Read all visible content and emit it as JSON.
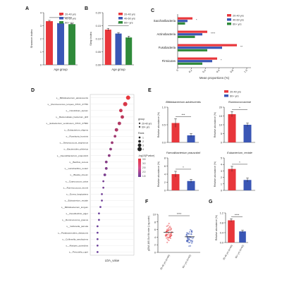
{
  "colors": {
    "red": "#e8363b",
    "blue": "#3a56b5",
    "green": "#2f8a3a",
    "axis": "#333333",
    "pink": "#d94f8d",
    "purple": "#6a3d9a"
  },
  "chart_data": [
    {
      "id": "A",
      "panel_label": "A",
      "type": "bar",
      "categories": [
        "20-40 yrs",
        "40-60 yrs",
        "60+ yrs"
      ],
      "values": [
        3.35,
        3.2,
        3.12
      ],
      "errors": [
        0.06,
        0.05,
        0.05
      ],
      "ylabel": "Shannon index",
      "xlabel": "Age group",
      "ylim": [
        0,
        4
      ],
      "yticks": [
        "0",
        "1",
        "2",
        "3",
        "4"
      ],
      "sig": "**",
      "legend": [
        "20-40 yrs",
        "40-60 yrs",
        "60+ yrs"
      ],
      "legend_position": "top-right"
    },
    {
      "id": "B",
      "panel_label": "B",
      "type": "bar",
      "categories": [
        "20-40 yrs",
        "40-60 yrs",
        "60+ yrs"
      ],
      "values": [
        0.135,
        0.12,
        0.105
      ],
      "errors": [
        0.005,
        0.004,
        0.005
      ],
      "ylabel": "Simp index",
      "xlabel": "Age group",
      "ylim": [
        0,
        0.2
      ],
      "yticks": [
        "0.00",
        "0.05",
        "0.10",
        "0.15",
        "0.20"
      ],
      "sig": "*",
      "legend": [
        "20-40 yrs",
        "40-60 yrs",
        "60+ yrs"
      ],
      "legend_position": "top-right"
    },
    {
      "id": "C",
      "panel_label": "C",
      "type": "bar",
      "orientation": "horizontal",
      "categories": [
        "Saccharibacteria",
        "Actinobacteria",
        "Fusobacteria",
        "Firmicutes"
      ],
      "series": [
        {
          "name": "20-40 yrs",
          "values": [
            0.3,
            0.6,
            1.2,
            0.8
          ]
        },
        {
          "name": "40-60 yrs",
          "values": [
            0.2,
            0.5,
            0.9,
            0.7
          ]
        },
        {
          "name": "60+ yrs",
          "values": [
            0.15,
            0.35,
            0.6,
            0.5
          ]
        }
      ],
      "sig": [
        "*",
        "****",
        "**",
        "*"
      ],
      "xlabel": "Mean proportions (%)",
      "xticks": [
        "0",
        "0.2",
        "0.4",
        "0.6",
        "0.8",
        "1.0"
      ],
      "legend": [
        "20-40 yrs",
        "40-60 yrs",
        "60+ yrs"
      ],
      "legend_position": "top-right"
    },
    {
      "id": "D",
      "panel_label": "D",
      "type": "scatter",
      "categories": [
        "s__Bifidobacterium_adolescentis",
        "s__Ruminococcus_torques_ATCC_27756",
        "s__Clostridium_leptum",
        "s__Bacteroidales_bacterium_ph8",
        "s__Eubacterium_ventriosum_ATCC_27560",
        "s__Eubacterium_eligens",
        "s__Roseburia_hominis",
        "s__Streptococcus_anginosus",
        "s__Bacteroides_plebeius",
        "s__Faecalibacterium_prausnitzii",
        "s__Bacillus_cereus",
        "s__Lactobacillus_reuteri",
        "s__Blautia_obeum",
        "s__Coprococcus_catus",
        "s__Ruminococcus_bromii",
        "s__Dorea_longicatena",
        "s__Eubacterium_rectale",
        "s__Bifidobacterium_longum",
        "s__Desulfovibrio_piger",
        "s__Ruminococcus_gnavus",
        "s__Veillonella_parvula",
        "s__Parabacteroides_distasonis",
        "s__Collinsella_aerofaciens",
        "s__Alistipes_putredinis",
        "s__Prevotella_copri"
      ],
      "x": [
        4.1,
        3.9,
        3.6,
        3.7,
        3.5,
        3.3,
        3.2,
        3.0,
        2.9,
        2.8,
        2.6,
        2.6,
        2.5,
        2.4,
        2.4,
        2.3,
        2.3,
        2.2,
        2.1,
        2.1,
        2.0,
        2.0,
        2.0,
        2.0,
        2.0
      ],
      "log10p": [
        3.6,
        3.3,
        3.0,
        2.8,
        2.6,
        2.5,
        2.3,
        2.2,
        2.0,
        1.9,
        1.8,
        1.7,
        1.6,
        1.5,
        1.5,
        1.4,
        1.4,
        1.3,
        1.3,
        1.3,
        1.3,
        1.3,
        1.3,
        1.3,
        1.3
      ],
      "size": [
        4,
        4,
        3,
        3,
        3,
        3,
        2,
        2,
        2,
        2,
        2,
        2,
        2,
        1,
        1,
        1,
        1,
        1,
        1,
        1,
        1,
        1,
        1,
        1,
        1
      ],
      "xlabel": "LDA_value",
      "legend_title_group": "group",
      "legend_group": [
        "20-40 yrs",
        "60+ yrs"
      ],
      "legend_title_size": "Rank",
      "legend_size": [
        "1",
        "2",
        "3",
        "4"
      ],
      "legend_title_color": "-log10(Pvalue)",
      "legend_color": [
        "3.5",
        "3.0",
        "2.5",
        "2.0",
        "1.5"
      ]
    },
    {
      "id": "E",
      "panel_label": "E",
      "type": "bar",
      "legend": [
        "20-40 yrs",
        "60+ yrs"
      ],
      "ylabel": "Relative abundance (%)",
      "subplots": [
        {
          "title": "Bifidobacterium adolescentis",
          "values": [
            0.55,
            0.2
          ],
          "errors": [
            0.12,
            0.05
          ],
          "ylim": [
            0,
            1.0
          ],
          "yticks": [
            "0.0",
            "0.5",
            "1.0"
          ],
          "sig": "***"
        },
        {
          "title": "Ruminococcaceae",
          "values": [
            16,
            10
          ],
          "errors": [
            1.5,
            1.0
          ],
          "ylim": [
            0,
            20
          ],
          "yticks": [
            "0",
            "5",
            "10",
            "15",
            "20"
          ],
          "sig": "*"
        },
        {
          "title": "Faecalibacterium prausnitzii",
          "values": [
            4.0,
            2.3
          ],
          "errors": [
            0.7,
            0.4
          ],
          "ylim": [
            0,
            8
          ],
          "yticks": [
            "0",
            "2",
            "4",
            "6",
            "8"
          ],
          "sig": "*"
        },
        {
          "title": "Eubacterium_rectale",
          "values": [
            3.3,
            1.6
          ],
          "errors": [
            0.4,
            0.3
          ],
          "ylim": [
            0,
            5
          ],
          "yticks": [
            "0",
            "1",
            "2",
            "3",
            "4",
            "5"
          ],
          "sig": "*"
        }
      ]
    },
    {
      "id": "F",
      "panel_label": "F",
      "type": "scatter",
      "categories": [
        "20-40 yrs (n=90)",
        "60+ yrs (n=92)"
      ],
      "mean": [
        5.3,
        4.1
      ],
      "ylabel": "gDNA 16S Gut Microbe (Log-scale)",
      "ylim": [
        0,
        10
      ],
      "yticks": [
        "0",
        "2",
        "4",
        "6",
        "8",
        "10"
      ],
      "sig": "****",
      "point_count": [
        90,
        92
      ]
    },
    {
      "id": "G",
      "panel_label": "G",
      "type": "bar",
      "categories": [
        "20-40 yrs (n=90)",
        "60+ yrs (n=92)"
      ],
      "values": [
        0.9,
        0.45
      ],
      "errors": [
        0.06,
        0.05
      ],
      "ylabel": "Relative abundance (%)",
      "ylim": [
        0,
        1.2
      ],
      "yticks": [
        "0.0",
        "0.4",
        "0.8",
        "1.2"
      ],
      "sig": "****"
    }
  ]
}
